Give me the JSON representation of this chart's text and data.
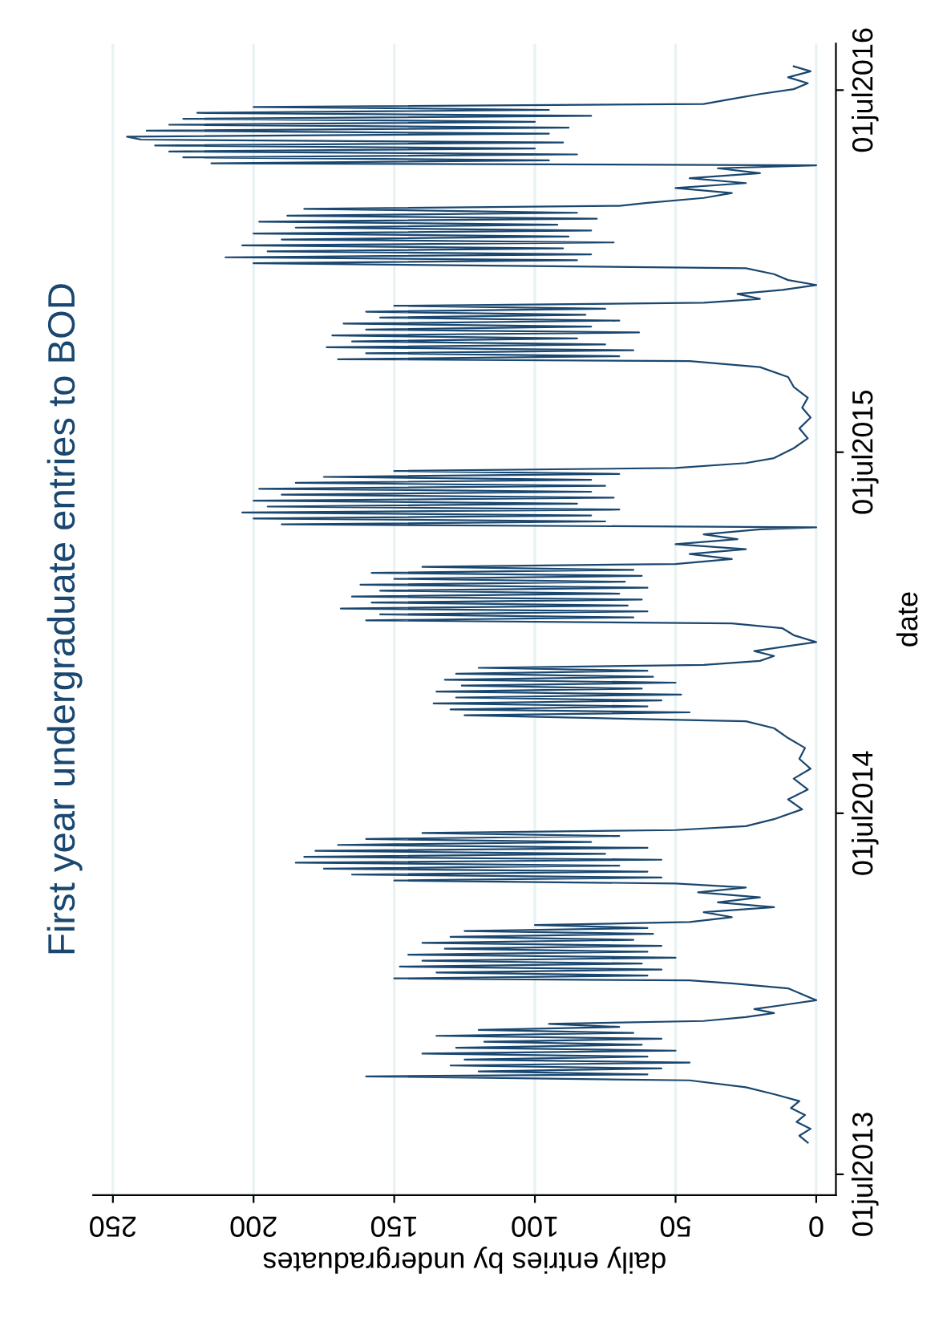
{
  "chart_data": {
    "type": "line",
    "title": "First year undergraduate entries to BOD",
    "xlabel": "daily entries by undergraduates",
    "ylabel": "date",
    "orientation": "horizontal",
    "x": [
      "2013-08-02",
      "2013-08-09",
      "2013-08-16",
      "2013-08-23",
      "2013-08-30",
      "2013-09-06",
      "2013-09-13",
      "2013-09-20",
      "2013-09-27",
      "2013-10-04",
      "2013-10-08",
      "2013-10-10",
      "2013-10-13",
      "2013-10-16",
      "2013-10-19",
      "2013-10-22",
      "2013-10-25",
      "2013-10-28",
      "2013-10-31",
      "2013-11-03",
      "2013-11-06",
      "2013-11-09",
      "2013-11-12",
      "2013-11-15",
      "2013-11-18",
      "2013-11-21",
      "2013-11-24",
      "2013-11-27",
      "2013-11-30",
      "2013-12-03",
      "2013-12-07",
      "2013-12-11",
      "2013-12-15",
      "2013-12-19",
      "2013-12-24",
      "2013-12-30",
      "2014-01-05",
      "2014-01-10",
      "2014-01-13",
      "2014-01-15",
      "2014-01-18",
      "2014-01-21",
      "2014-01-24",
      "2014-01-27",
      "2014-01-30",
      "2014-02-02",
      "2014-02-05",
      "2014-02-08",
      "2014-02-11",
      "2014-02-14",
      "2014-02-17",
      "2014-02-20",
      "2014-02-23",
      "2014-02-26",
      "2014-03-01",
      "2014-03-04",
      "2014-03-07",
      "2014-03-10",
      "2014-03-13",
      "2014-03-18",
      "2014-03-23",
      "2014-03-28",
      "2014-04-02",
      "2014-04-07",
      "2014-04-12",
      "2014-04-17",
      "2014-04-21",
      "2014-04-24",
      "2014-04-27",
      "2014-04-30",
      "2014-05-03",
      "2014-05-06",
      "2014-05-09",
      "2014-05-12",
      "2014-05-15",
      "2014-05-18",
      "2014-05-21",
      "2014-05-24",
      "2014-05-27",
      "2014-05-30",
      "2014-06-02",
      "2014-06-05",
      "2014-06-08",
      "2014-06-11",
      "2014-06-14",
      "2014-06-18",
      "2014-06-25",
      "2014-07-05",
      "2014-07-15",
      "2014-07-25",
      "2014-08-05",
      "2014-08-15",
      "2014-08-25",
      "2014-09-05",
      "2014-09-15",
      "2014-09-25",
      "2014-10-02",
      "2014-10-08",
      "2014-10-11",
      "2014-10-14",
      "2014-10-17",
      "2014-10-20",
      "2014-10-23",
      "2014-10-26",
      "2014-10-29",
      "2014-11-01",
      "2014-11-04",
      "2014-11-07",
      "2014-11-10",
      "2014-11-13",
      "2014-11-16",
      "2014-11-19",
      "2014-11-22",
      "2014-11-25",
      "2014-11-28",
      "2014-12-02",
      "2014-12-07",
      "2014-12-12",
      "2014-12-17",
      "2014-12-21",
      "2014-12-28",
      "2015-01-04",
      "2015-01-09",
      "2015-01-12",
      "2015-01-15",
      "2015-01-18",
      "2015-01-21",
      "2015-01-24",
      "2015-01-27",
      "2015-01-30",
      "2015-02-02",
      "2015-02-05",
      "2015-02-08",
      "2015-02-11",
      "2015-02-14",
      "2015-02-17",
      "2015-02-20",
      "2015-02-23",
      "2015-02-26",
      "2015-03-01",
      "2015-03-04",
      "2015-03-07",
      "2015-03-10",
      "2015-03-15",
      "2015-03-20",
      "2015-03-25",
      "2015-03-30",
      "2015-04-04",
      "2015-04-09",
      "2015-04-14",
      "2015-04-16",
      "2015-04-19",
      "2015-04-22",
      "2015-04-25",
      "2015-04-28",
      "2015-05-01",
      "2015-05-04",
      "2015-05-07",
      "2015-05-10",
      "2015-05-13",
      "2015-05-16",
      "2015-05-19",
      "2015-05-22",
      "2015-05-25",
      "2015-05-28",
      "2015-05-31",
      "2015-06-03",
      "2015-06-06",
      "2015-06-09",
      "2015-06-12",
      "2015-06-15",
      "2015-06-20",
      "2015-06-25",
      "2015-07-05",
      "2015-07-15",
      "2015-07-25",
      "2015-08-05",
      "2015-08-15",
      "2015-08-25",
      "2015-09-05",
      "2015-09-15",
      "2015-09-25",
      "2015-10-01",
      "2015-10-03",
      "2015-10-06",
      "2015-10-09",
      "2015-10-12",
      "2015-10-15",
      "2015-10-18",
      "2015-10-21",
      "2015-10-24",
      "2015-10-27",
      "2015-10-30",
      "2015-11-02",
      "2015-11-05",
      "2015-11-08",
      "2015-11-11",
      "2015-11-14",
      "2015-11-17",
      "2015-11-20",
      "2015-11-23",
      "2015-11-26",
      "2015-11-29",
      "2015-12-03",
      "2015-12-08",
      "2015-12-12",
      "2015-12-17",
      "2015-12-22",
      "2015-12-28",
      "2016-01-03",
      "2016-01-08",
      "2016-01-11",
      "2016-01-14",
      "2016-01-17",
      "2016-01-20",
      "2016-01-23",
      "2016-01-26",
      "2016-01-29",
      "2016-02-01",
      "2016-02-04",
      "2016-02-07",
      "2016-02-10",
      "2016-02-13",
      "2016-02-16",
      "2016-02-19",
      "2016-02-22",
      "2016-02-25",
      "2016-02-28",
      "2016-03-03",
      "2016-03-06",
      "2016-03-09",
      "2016-03-14",
      "2016-03-19",
      "2016-03-24",
      "2016-03-29",
      "2016-04-03",
      "2016-04-08",
      "2016-04-13",
      "2016-04-16",
      "2016-04-18",
      "2016-04-21",
      "2016-04-24",
      "2016-04-27",
      "2016-04-30",
      "2016-05-03",
      "2016-05-06",
      "2016-05-09",
      "2016-05-12",
      "2016-05-15",
      "2016-05-18",
      "2016-05-21",
      "2016-05-24",
      "2016-05-27",
      "2016-05-30",
      "2016-06-02",
      "2016-06-05",
      "2016-06-08",
      "2016-06-11",
      "2016-06-14",
      "2016-06-17",
      "2016-06-22",
      "2016-06-27",
      "2016-07-02",
      "2016-07-08",
      "2016-07-14",
      "2016-07-20",
      "2016-07-25"
    ],
    "series": [
      {
        "color": "#1a476f",
        "values": [
          3,
          6,
          2,
          7,
          4,
          9,
          6,
          15,
          25,
          45,
          160,
          60,
          120,
          55,
          130,
          45,
          125,
          60,
          140,
          50,
          128,
          62,
          118,
          55,
          135,
          65,
          120,
          70,
          95,
          40,
          25,
          15,
          22,
          12,
          0,
          5,
          10,
          30,
          45,
          150,
          60,
          135,
          55,
          148,
          62,
          140,
          50,
          145,
          60,
          132,
          55,
          140,
          65,
          130,
          58,
          125,
          60,
          100,
          45,
          30,
          40,
          15,
          35,
          20,
          42,
          25,
          50,
          150,
          55,
          165,
          60,
          175,
          70,
          185,
          55,
          182,
          75,
          178,
          60,
          170,
          80,
          160,
          70,
          140,
          50,
          25,
          15,
          5,
          10,
          3,
          8,
          2,
          6,
          4,
          10,
          15,
          25,
          125,
          45,
          130,
          60,
          136,
          55,
          128,
          48,
          135,
          62,
          126,
          50,
          132,
          58,
          128,
          60,
          120,
          40,
          20,
          15,
          22,
          10,
          0,
          8,
          12,
          30,
          160,
          65,
          155,
          60,
          169,
          67,
          158,
          62,
          165,
          70,
          155,
          60,
          162,
          68,
          150,
          62,
          158,
          65,
          140,
          50,
          30,
          45,
          25,
          50,
          28,
          40,
          20,
          0,
          190,
          75,
          200,
          80,
          204,
          70,
          195,
          85,
          200,
          72,
          190,
          80,
          198,
          75,
          185,
          80,
          175,
          70,
          150,
          50,
          25,
          15,
          8,
          3,
          6,
          2,
          5,
          3,
          8,
          10,
          20,
          45,
          170,
          70,
          160,
          65,
          174,
          75,
          165,
          85,
          172,
          63,
          160,
          80,
          168,
          70,
          155,
          82,
          160,
          75,
          150,
          40,
          20,
          28,
          12,
          0,
          10,
          15,
          25,
          200,
          85,
          210,
          80,
          195,
          90,
          204,
          72,
          190,
          88,
          200,
          80,
          185,
          92,
          198,
          78,
          188,
          85,
          182,
          70,
          60,
          40,
          30,
          50,
          25,
          45,
          20,
          35,
          0,
          215,
          95,
          225,
          85,
          230,
          100,
          235,
          90,
          240,
          245,
          95,
          238,
          88,
          230,
          100,
          225,
          80,
          220,
          95,
          200,
          40,
          30,
          20,
          8,
          3,
          10,
          2,
          8
        ]
      }
    ],
    "ylim": [
      "2013-06-10",
      "2016-08-17"
    ],
    "yticks": [
      {
        "value": "2013-07-01",
        "label": "01jul2013"
      },
      {
        "value": "2014-07-01",
        "label": "01jul2014"
      },
      {
        "value": "2015-07-01",
        "label": "01jul2015"
      },
      {
        "value": "2016-07-01",
        "label": "01jul2016"
      }
    ],
    "xlim": [
      257,
      -7
    ],
    "xticks": [
      250,
      200,
      150,
      100,
      50,
      0
    ],
    "grid": "x",
    "legend": false,
    "marker": "none",
    "line_style": "solid"
  }
}
